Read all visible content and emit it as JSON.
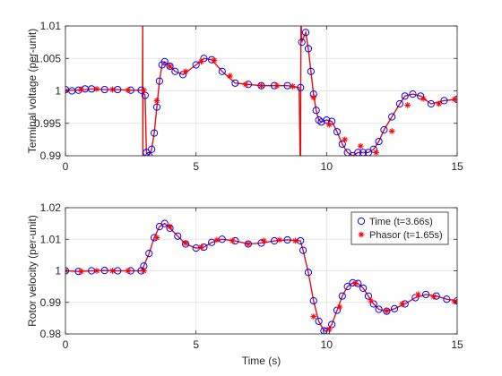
{
  "colors": {
    "time_marker": "#0000ff",
    "phasor_marker": "#ff0000",
    "line": "#e01010",
    "grid": "#e6e6e6",
    "axis": "#262626"
  },
  "chart_data": [
    {
      "type": "line",
      "title": "",
      "xlabel": "",
      "ylabel": "Terminal voltage (per-unit)",
      "xlim": [
        0,
        15
      ],
      "ylim": [
        0.99,
        1.01
      ],
      "xticks": [
        0,
        5,
        10,
        15
      ],
      "yticks": [
        0.99,
        0.995,
        1,
        1.005,
        1.01
      ],
      "xtick_labels": [
        "0",
        "5",
        "10",
        "15"
      ],
      "ytick_labels": [
        "0.99",
        "0.995",
        "1",
        "1.005",
        "1.01"
      ],
      "grid": true,
      "legend": "",
      "series": [
        {
          "marker": "circle",
          "x": [
            0,
            0.25,
            0.5,
            0.75,
            1,
            1.5,
            2,
            2.5,
            2.9,
            3.05,
            3.1,
            3.2,
            3.3,
            3.4,
            3.5,
            3.6,
            3.7,
            3.8,
            4,
            4.2,
            4.5,
            5,
            5.3,
            5.6,
            6,
            6.5,
            7,
            7.5,
            8,
            8.5,
            9,
            9.05,
            9.2,
            9.3,
            9.4,
            9.5,
            9.6,
            9.7,
            9.8,
            10,
            10.2,
            10.4,
            10.6,
            10.8,
            11,
            11.2,
            11.4,
            11.6,
            11.8,
            12,
            12.2,
            12.5,
            12.8,
            13,
            13.3,
            13.6,
            14,
            14.5,
            15
          ],
          "y": [
            1.0002,
            1.0,
            1.0001,
            1.0003,
            1.0003,
            1.0002,
            1.0002,
            1.0001,
            1.0001,
            0.9993,
            0.9905,
            0.99,
            0.991,
            0.9935,
            0.9975,
            1.0015,
            1.004,
            1.0045,
            1.0038,
            1.003,
            1.0025,
            1.004,
            1.005,
            1.0048,
            1.003,
            1.0012,
            1.001,
            1.0008,
            1.0008,
            1.0008,
            1.0005,
            1.0075,
            1.009,
            1.0065,
            1.003,
            0.9995,
            0.997,
            0.9955,
            0.9952,
            0.9955,
            0.9953,
            0.9937,
            0.9918,
            0.9905,
            0.99,
            0.9905,
            0.9905,
            0.9905,
            0.991,
            0.9922,
            0.994,
            0.996,
            0.998,
            0.9992,
            0.9995,
            0.9992,
            0.998,
            0.9985,
            0.9987
          ]
        },
        {
          "marker": "asterisk",
          "x": [
            0,
            0.6,
            1.2,
            1.8,
            2.4,
            3.0,
            3.5,
            4.0,
            4.6,
            5.2,
            5.7,
            6.3,
            6.9,
            7.5,
            8.1,
            8.7,
            9.5,
            10.1,
            10.7,
            11.3,
            11.9,
            12.5,
            13.1,
            13.7,
            14.3,
            14.9
          ],
          "y": [
            1.0,
            1.0002,
            1.0003,
            1.0002,
            1.0001,
            1.0001,
            0.9985,
            1.0038,
            1.003,
            1.0045,
            1.0047,
            1.0023,
            1.001,
            1.0008,
            1.0008,
            1.0007,
            0.999,
            0.9948,
            0.9925,
            0.9915,
            0.9905,
            0.9938,
            0.9978,
            0.9988,
            0.998,
            0.9987
          ]
        },
        {
          "marker": "none",
          "x": [
            0,
            0.5,
            1,
            1.5,
            2,
            2.5,
            2.95,
            2.96,
            2.965,
            2.97,
            3.05,
            3.1,
            3.2,
            3.3,
            3.4,
            3.5,
            3.6,
            3.7,
            3.8,
            4,
            4.2,
            4.5,
            5,
            5.3,
            5.6,
            6,
            6.5,
            7,
            7.5,
            8,
            8.5,
            8.95,
            9.0,
            9.02,
            9.05,
            9.2,
            9.3,
            9.4,
            9.5,
            9.6,
            9.7,
            9.8,
            10,
            10.2,
            10.4,
            10.6,
            10.8,
            11,
            11.2,
            11.4,
            11.6,
            11.8,
            12,
            12.2,
            12.5,
            12.8,
            13,
            13.3,
            13.6,
            14,
            14.5,
            15
          ],
          "y": [
            1.0001,
            1.0001,
            1.0003,
            1.0002,
            1.0002,
            1.0001,
            1.0001,
            1.012,
            0.985,
            0.9998,
            0.9993,
            0.9905,
            0.99,
            0.991,
            0.9935,
            0.9975,
            1.0015,
            1.004,
            1.0045,
            1.0038,
            1.003,
            1.0025,
            1.004,
            1.005,
            1.0048,
            1.003,
            1.0012,
            1.001,
            1.0008,
            1.0008,
            1.0008,
            1.0005,
            0.985,
            1.012,
            1.0075,
            1.009,
            1.0065,
            1.003,
            0.9995,
            0.997,
            0.9955,
            0.9952,
            0.9955,
            0.9953,
            0.9937,
            0.9918,
            0.9905,
            0.99,
            0.9905,
            0.9905,
            0.9905,
            0.991,
            0.9922,
            0.994,
            0.996,
            0.998,
            0.9992,
            0.9995,
            0.9992,
            0.998,
            0.9985,
            0.9987
          ]
        }
      ]
    },
    {
      "type": "line",
      "title": "",
      "xlabel": "Time (s)",
      "ylabel": "Rotor velocity (per-unit)",
      "xlim": [
        0,
        15
      ],
      "ylim": [
        0.98,
        1.02
      ],
      "xticks": [
        0,
        5,
        10,
        15
      ],
      "yticks": [
        0.98,
        0.99,
        1,
        1.01,
        1.02
      ],
      "xtick_labels": [
        "0",
        "5",
        "10",
        "15"
      ],
      "ytick_labels": [
        "0.98",
        "0.99",
        "1",
        "1.01",
        "1.02"
      ],
      "grid": true,
      "legend": "top-right",
      "series": [
        {
          "name": "Time (t=3.66s)",
          "marker": "circle",
          "x": [
            0,
            0.5,
            1,
            1.5,
            2,
            2.5,
            2.9,
            3.0,
            3.2,
            3.4,
            3.6,
            3.8,
            4.0,
            4.3,
            4.6,
            5.0,
            5.3,
            5.6,
            6.0,
            6.5,
            7.0,
            7.5,
            8.0,
            8.5,
            9.0,
            9.1,
            9.3,
            9.5,
            9.7,
            9.9,
            10.0,
            10.2,
            10.4,
            10.6,
            10.8,
            11.0,
            11.2,
            11.4,
            11.6,
            11.8,
            12.0,
            12.3,
            12.6,
            13.0,
            13.4,
            13.8,
            14.2,
            14.6,
            15.0
          ],
          "y": [
            1.0,
            0.9998,
            1.0,
            1.0001,
            1.0,
            1.0,
            1.0,
            1.0015,
            1.0055,
            1.0105,
            1.014,
            1.015,
            1.0135,
            1.011,
            1.0085,
            1.0072,
            1.0075,
            1.009,
            1.01,
            1.0095,
            1.0085,
            1.0088,
            1.0095,
            1.0098,
            1.0095,
            1.0065,
            0.9995,
            0.9905,
            0.984,
            0.981,
            0.9808,
            0.983,
            0.9875,
            0.992,
            0.995,
            0.9962,
            0.996,
            0.9945,
            0.992,
            0.9895,
            0.9878,
            0.9872,
            0.988,
            0.9895,
            0.9915,
            0.9925,
            0.992,
            0.991,
            0.9905
          ]
        },
        {
          "name": "Phasor (t=1.65s)",
          "marker": "asterisk",
          "x": [
            0,
            0.6,
            1.2,
            1.8,
            2.4,
            3.0,
            3.5,
            4.0,
            4.6,
            5.2,
            5.8,
            6.4,
            7.0,
            7.6,
            8.2,
            8.8,
            9.5,
            10.1,
            10.5,
            11.1,
            11.7,
            12.3,
            12.9,
            13.5,
            14.1,
            14.9
          ],
          "y": [
            1.0,
            0.9998,
            1.0,
            1.0,
            1.0,
            1.0,
            1.0105,
            1.014,
            1.0088,
            1.0075,
            1.0098,
            1.0095,
            1.0085,
            1.0095,
            1.0098,
            1.0095,
            0.9855,
            0.9815,
            0.9885,
            0.996,
            0.9905,
            0.9873,
            0.9895,
            0.9925,
            0.9918,
            0.9903
          ]
        },
        {
          "marker": "none",
          "x": [
            0,
            0.5,
            1,
            1.5,
            2,
            2.5,
            2.9,
            3.0,
            3.2,
            3.4,
            3.6,
            3.8,
            4.0,
            4.3,
            4.6,
            5.0,
            5.3,
            5.6,
            6.0,
            6.5,
            7.0,
            7.5,
            8.0,
            8.5,
            9.0,
            9.1,
            9.3,
            9.5,
            9.7,
            9.9,
            10.0,
            10.2,
            10.4,
            10.6,
            10.8,
            11.0,
            11.2,
            11.4,
            11.6,
            11.8,
            12.0,
            12.3,
            12.6,
            13.0,
            13.4,
            13.8,
            14.2,
            14.6,
            15.0
          ],
          "y": [
            1.0,
            0.9998,
            1.0,
            1.0001,
            1.0,
            1.0,
            1.0,
            1.0015,
            1.0055,
            1.0105,
            1.014,
            1.015,
            1.0135,
            1.011,
            1.0085,
            1.0072,
            1.0075,
            1.009,
            1.01,
            1.0095,
            1.0085,
            1.0088,
            1.0095,
            1.0098,
            1.0095,
            1.0065,
            0.9995,
            0.9905,
            0.984,
            0.981,
            0.9808,
            0.983,
            0.9875,
            0.992,
            0.995,
            0.9962,
            0.996,
            0.9945,
            0.992,
            0.9895,
            0.9878,
            0.9872,
            0.988,
            0.9895,
            0.9915,
            0.9925,
            0.992,
            0.991,
            0.9905
          ]
        }
      ]
    }
  ]
}
